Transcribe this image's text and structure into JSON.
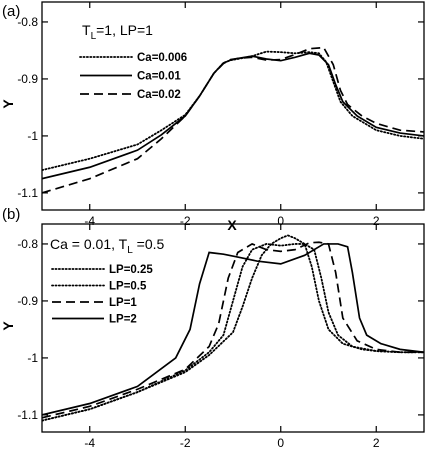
{
  "chart_data": [
    {
      "panel": "(a)",
      "type": "line",
      "subtitle": {
        "parts": [
          "T",
          "L",
          "=1, LP=1"
        ]
      },
      "xlabel": "X",
      "ylabel": "Y",
      "xlim": [
        -5,
        3
      ],
      "ylim": [
        -1.13,
        -0.765
      ],
      "xticks": [
        -4,
        -2,
        0,
        2
      ],
      "yticks": [
        -0.8,
        -0.9,
        -1.0,
        -1.1
      ],
      "ytick_labels": [
        "-0.8",
        "-0.9",
        "-1",
        "-1.1"
      ],
      "legend": "top-left",
      "series": [
        {
          "name": "Ca=0.006",
          "style": "dotted",
          "color": "#000000",
          "x": [
            -5,
            -4,
            -3,
            -2.5,
            -2,
            -1.7,
            -1.4,
            -1.2,
            -1.05,
            -0.9,
            -0.6,
            -0.3,
            0,
            0.3,
            0.6,
            0.8,
            0.95,
            1.1,
            1.25,
            1.5,
            2,
            2.5,
            3
          ],
          "y": [
            -1.06,
            -1.04,
            -1.015,
            -0.99,
            -0.963,
            -0.93,
            -0.89,
            -0.872,
            -0.867,
            -0.865,
            -0.86,
            -0.852,
            -0.853,
            -0.855,
            -0.853,
            -0.855,
            -0.87,
            -0.905,
            -0.94,
            -0.965,
            -0.99,
            -1.0,
            -1.005
          ]
        },
        {
          "name": "Ca=0.01",
          "style": "solid",
          "color": "#000000",
          "x": [
            -5,
            -4,
            -3,
            -2.5,
            -2,
            -1.7,
            -1.4,
            -1.2,
            -1.05,
            -0.9,
            -0.6,
            -0.3,
            0,
            0.3,
            0.6,
            0.8,
            1.0,
            1.15,
            1.3,
            1.6,
            2,
            2.5,
            3
          ],
          "y": [
            -1.075,
            -1.055,
            -1.025,
            -0.998,
            -0.965,
            -0.93,
            -0.89,
            -0.872,
            -0.867,
            -0.864,
            -0.86,
            -0.865,
            -0.868,
            -0.862,
            -0.855,
            -0.858,
            -0.875,
            -0.91,
            -0.94,
            -0.965,
            -0.985,
            -0.995,
            -1.0
          ]
        },
        {
          "name": "Ca=0.02",
          "style": "dashed",
          "color": "#000000",
          "x": [
            -5,
            -4,
            -3,
            -2.5,
            -2,
            -1.7,
            -1.4,
            -1.2,
            -1.05,
            -0.9,
            -0.6,
            -0.3,
            0,
            0.3,
            0.6,
            0.9,
            1.1,
            1.25,
            1.4,
            1.7,
            2,
            2.5,
            3
          ],
          "y": [
            -1.1,
            -1.075,
            -1.04,
            -1.005,
            -0.965,
            -0.93,
            -0.89,
            -0.873,
            -0.866,
            -0.864,
            -0.862,
            -0.867,
            -0.866,
            -0.857,
            -0.847,
            -0.845,
            -0.875,
            -0.92,
            -0.945,
            -0.965,
            -0.978,
            -0.99,
            -0.993
          ]
        }
      ]
    },
    {
      "panel": "(b)",
      "type": "line",
      "subtitle": {
        "parts": [
          "Ca = 0.01, T",
          "L",
          " =0.5"
        ]
      },
      "xlabel": "",
      "ylabel": "Y",
      "xlim": [
        -5,
        3
      ],
      "ylim": [
        -1.13,
        -0.765
      ],
      "xticks": [
        -4,
        -2,
        0,
        2
      ],
      "yticks": [
        -0.8,
        -0.9,
        -1.0,
        -1.1
      ],
      "ytick_labels": [
        "-0.8",
        "-0.9",
        "-1",
        "-1.1"
      ],
      "legend": "top-left",
      "series": [
        {
          "name": "LP=0.25",
          "style": "dotted",
          "color": "#000000",
          "x": [
            -5,
            -4,
            -3,
            -2,
            -1.5,
            -1.0,
            -0.8,
            -0.6,
            -0.4,
            -0.2,
            0,
            0.15,
            0.3,
            0.5,
            0.65,
            0.8,
            1.0,
            1.3,
            1.7,
            2,
            2.5,
            3
          ],
          "y": [
            -1.11,
            -1.09,
            -1.06,
            -1.025,
            -0.995,
            -0.955,
            -0.91,
            -0.86,
            -0.82,
            -0.8,
            -0.79,
            -0.785,
            -0.79,
            -0.8,
            -0.84,
            -0.9,
            -0.95,
            -0.975,
            -0.985,
            -0.988,
            -0.99,
            -0.99
          ]
        },
        {
          "name": "LP=0.5",
          "style": "dotted",
          "color": "#000000",
          "x": [
            -5,
            -4,
            -3,
            -2,
            -1.5,
            -1.2,
            -1.0,
            -0.8,
            -0.6,
            -0.3,
            0,
            0.3,
            0.5,
            0.7,
            0.85,
            1.0,
            1.2,
            1.5,
            2,
            2.5,
            3
          ],
          "y": [
            -1.11,
            -1.09,
            -1.06,
            -1.022,
            -0.99,
            -0.96,
            -0.9,
            -0.84,
            -0.81,
            -0.8,
            -0.803,
            -0.8,
            -0.8,
            -0.81,
            -0.86,
            -0.92,
            -0.96,
            -0.98,
            -0.988,
            -0.99,
            -0.99
          ]
        },
        {
          "name": "LP=1",
          "style": "dashed",
          "color": "#000000",
          "x": [
            -5,
            -4,
            -3,
            -2,
            -1.5,
            -1.3,
            -1.1,
            -0.9,
            -0.6,
            -0.3,
            0,
            0.3,
            0.6,
            0.8,
            1.0,
            1.15,
            1.3,
            1.6,
            2,
            2.5,
            3
          ],
          "y": [
            -1.105,
            -1.085,
            -1.055,
            -1.02,
            -0.98,
            -0.94,
            -0.86,
            -0.815,
            -0.8,
            -0.81,
            -0.813,
            -0.81,
            -0.798,
            -0.797,
            -0.8,
            -0.85,
            -0.93,
            -0.97,
            -0.985,
            -0.99,
            -0.99
          ]
        },
        {
          "name": "LP=2",
          "style": "solid",
          "color": "#000000",
          "x": [
            -5,
            -4,
            -3,
            -2.2,
            -1.9,
            -1.7,
            -1.5,
            -1.2,
            -0.9,
            -0.5,
            0,
            0.5,
            0.9,
            1.2,
            1.4,
            1.5,
            1.65,
            1.8,
            2.1,
            2.5,
            3
          ],
          "y": [
            -1.1,
            -1.08,
            -1.05,
            -1.0,
            -0.95,
            -0.87,
            -0.815,
            -0.818,
            -0.823,
            -0.83,
            -0.835,
            -0.82,
            -0.8,
            -0.8,
            -0.805,
            -0.85,
            -0.93,
            -0.96,
            -0.975,
            -0.985,
            -0.99
          ]
        }
      ]
    }
  ]
}
